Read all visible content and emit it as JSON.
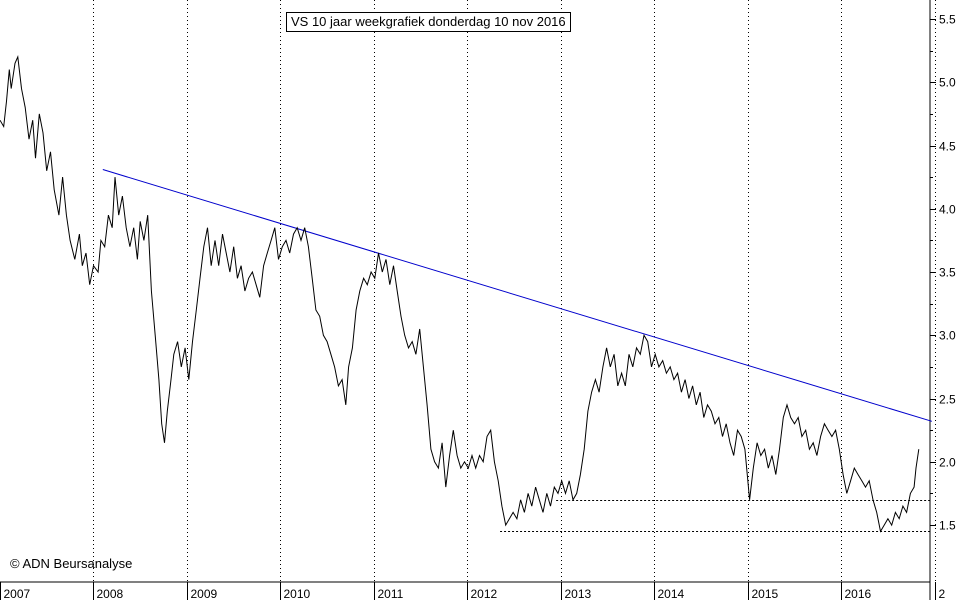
{
  "chart_data": {
    "type": "line",
    "title": "VS 10 jaar weekgrafiek donderdag 10 nov 2016",
    "credit": "© ADN Beursanalyse",
    "x_ticks": [
      "2007",
      "2008",
      "2009",
      "2010",
      "2011",
      "2012",
      "2013",
      "2014",
      "2015",
      "2016",
      "2"
    ],
    "y_ticks": [
      "1.5",
      "2.0",
      "2.5",
      "3.0",
      "3.5",
      "4.0",
      "4.5",
      "5.0",
      "5.5"
    ],
    "ylim": [
      1.05,
      5.65
    ],
    "xlim": [
      2007.0,
      2016.95
    ],
    "grid": "vertical dotted at year boundaries",
    "colors": {
      "price": "#000000",
      "trendline": "#0000cc",
      "support": "#000000"
    },
    "series": [
      {
        "values": [
          [
            2007.0,
            4.7
          ],
          [
            2007.04,
            4.65
          ],
          [
            2007.07,
            4.85
          ],
          [
            2007.1,
            5.1
          ],
          [
            2007.12,
            4.95
          ],
          [
            2007.16,
            5.15
          ],
          [
            2007.19,
            5.2
          ],
          [
            2007.23,
            4.95
          ],
          [
            2007.27,
            4.8
          ],
          [
            2007.31,
            4.55
          ],
          [
            2007.35,
            4.7
          ],
          [
            2007.38,
            4.4
          ],
          [
            2007.42,
            4.75
          ],
          [
            2007.46,
            4.6
          ],
          [
            2007.5,
            4.3
          ],
          [
            2007.54,
            4.45
          ],
          [
            2007.58,
            4.15
          ],
          [
            2007.63,
            3.95
          ],
          [
            2007.67,
            4.25
          ],
          [
            2007.71,
            3.95
          ],
          [
            2007.75,
            3.75
          ],
          [
            2007.8,
            3.6
          ],
          [
            2007.85,
            3.8
          ],
          [
            2007.88,
            3.55
          ],
          [
            2007.92,
            3.65
          ],
          [
            2007.96,
            3.4
          ],
          [
            2008.0,
            3.55
          ],
          [
            2008.05,
            3.5
          ],
          [
            2008.08,
            3.75
          ],
          [
            2008.12,
            3.7
          ],
          [
            2008.16,
            3.95
          ],
          [
            2008.2,
            3.85
          ],
          [
            2008.23,
            4.25
          ],
          [
            2008.27,
            3.95
          ],
          [
            2008.31,
            4.1
          ],
          [
            2008.35,
            3.85
          ],
          [
            2008.39,
            3.7
          ],
          [
            2008.43,
            3.85
          ],
          [
            2008.47,
            3.6
          ],
          [
            2008.5,
            3.9
          ],
          [
            2008.54,
            3.75
          ],
          [
            2008.58,
            3.95
          ],
          [
            2008.62,
            3.35
          ],
          [
            2008.66,
            3.0
          ],
          [
            2008.7,
            2.65
          ],
          [
            2008.73,
            2.3
          ],
          [
            2008.76,
            2.15
          ],
          [
            2008.79,
            2.4
          ],
          [
            2008.83,
            2.65
          ],
          [
            2008.86,
            2.85
          ],
          [
            2008.9,
            2.95
          ],
          [
            2008.94,
            2.75
          ],
          [
            2008.98,
            2.9
          ],
          [
            2009.02,
            2.65
          ],
          [
            2009.06,
            2.95
          ],
          [
            2009.1,
            3.2
          ],
          [
            2009.14,
            3.45
          ],
          [
            2009.18,
            3.7
          ],
          [
            2009.22,
            3.85
          ],
          [
            2009.26,
            3.55
          ],
          [
            2009.3,
            3.75
          ],
          [
            2009.34,
            3.55
          ],
          [
            2009.38,
            3.8
          ],
          [
            2009.42,
            3.65
          ],
          [
            2009.46,
            3.5
          ],
          [
            2009.5,
            3.7
          ],
          [
            2009.54,
            3.45
          ],
          [
            2009.58,
            3.55
          ],
          [
            2009.62,
            3.35
          ],
          [
            2009.66,
            3.45
          ],
          [
            2009.7,
            3.5
          ],
          [
            2009.74,
            3.4
          ],
          [
            2009.78,
            3.3
          ],
          [
            2009.82,
            3.55
          ],
          [
            2009.86,
            3.65
          ],
          [
            2009.9,
            3.75
          ],
          [
            2009.94,
            3.85
          ],
          [
            2009.98,
            3.6
          ],
          [
            2010.02,
            3.7
          ],
          [
            2010.06,
            3.75
          ],
          [
            2010.1,
            3.65
          ],
          [
            2010.14,
            3.8
          ],
          [
            2010.18,
            3.85
          ],
          [
            2010.22,
            3.75
          ],
          [
            2010.26,
            3.85
          ],
          [
            2010.3,
            3.7
          ],
          [
            2010.34,
            3.45
          ],
          [
            2010.38,
            3.2
          ],
          [
            2010.42,
            3.15
          ],
          [
            2010.46,
            3.0
          ],
          [
            2010.5,
            2.95
          ],
          [
            2010.54,
            2.85
          ],
          [
            2010.58,
            2.75
          ],
          [
            2010.62,
            2.6
          ],
          [
            2010.66,
            2.65
          ],
          [
            2010.7,
            2.45
          ],
          [
            2010.73,
            2.75
          ],
          [
            2010.77,
            2.9
          ],
          [
            2010.81,
            3.2
          ],
          [
            2010.85,
            3.35
          ],
          [
            2010.89,
            3.45
          ],
          [
            2010.93,
            3.4
          ],
          [
            2010.97,
            3.5
          ],
          [
            2011.01,
            3.45
          ],
          [
            2011.05,
            3.65
          ],
          [
            2011.09,
            3.5
          ],
          [
            2011.13,
            3.6
          ],
          [
            2011.17,
            3.4
          ],
          [
            2011.21,
            3.55
          ],
          [
            2011.25,
            3.35
          ],
          [
            2011.29,
            3.15
          ],
          [
            2011.33,
            3.0
          ],
          [
            2011.37,
            2.9
          ],
          [
            2011.41,
            2.95
          ],
          [
            2011.45,
            2.85
          ],
          [
            2011.49,
            3.05
          ],
          [
            2011.53,
            2.75
          ],
          [
            2011.57,
            2.45
          ],
          [
            2011.61,
            2.1
          ],
          [
            2011.65,
            2.0
          ],
          [
            2011.69,
            1.95
          ],
          [
            2011.73,
            2.15
          ],
          [
            2011.77,
            1.8
          ],
          [
            2011.81,
            2.05
          ],
          [
            2011.85,
            2.25
          ],
          [
            2011.89,
            2.05
          ],
          [
            2011.93,
            1.95
          ],
          [
            2011.97,
            2.0
          ],
          [
            2012.01,
            1.95
          ],
          [
            2012.05,
            2.05
          ],
          [
            2012.09,
            1.95
          ],
          [
            2012.13,
            2.05
          ],
          [
            2012.17,
            2.0
          ],
          [
            2012.21,
            2.2
          ],
          [
            2012.25,
            2.25
          ],
          [
            2012.29,
            2.0
          ],
          [
            2012.33,
            1.85
          ],
          [
            2012.37,
            1.65
          ],
          [
            2012.41,
            1.5
          ],
          [
            2012.45,
            1.55
          ],
          [
            2012.49,
            1.6
          ],
          [
            2012.53,
            1.55
          ],
          [
            2012.57,
            1.7
          ],
          [
            2012.61,
            1.6
          ],
          [
            2012.65,
            1.75
          ],
          [
            2012.69,
            1.65
          ],
          [
            2012.73,
            1.8
          ],
          [
            2012.77,
            1.7
          ],
          [
            2012.81,
            1.6
          ],
          [
            2012.85,
            1.75
          ],
          [
            2012.89,
            1.65
          ],
          [
            2012.93,
            1.8
          ],
          [
            2012.97,
            1.75
          ],
          [
            2013.01,
            1.85
          ],
          [
            2013.05,
            1.75
          ],
          [
            2013.09,
            1.85
          ],
          [
            2013.13,
            1.7
          ],
          [
            2013.17,
            1.75
          ],
          [
            2013.21,
            1.9
          ],
          [
            2013.25,
            2.1
          ],
          [
            2013.29,
            2.4
          ],
          [
            2013.33,
            2.55
          ],
          [
            2013.37,
            2.65
          ],
          [
            2013.41,
            2.55
          ],
          [
            2013.45,
            2.75
          ],
          [
            2013.49,
            2.9
          ],
          [
            2013.53,
            2.75
          ],
          [
            2013.57,
            2.85
          ],
          [
            2013.61,
            2.6
          ],
          [
            2013.65,
            2.7
          ],
          [
            2013.69,
            2.6
          ],
          [
            2013.73,
            2.85
          ],
          [
            2013.77,
            2.75
          ],
          [
            2013.81,
            2.9
          ],
          [
            2013.85,
            2.85
          ],
          [
            2013.89,
            3.0
          ],
          [
            2013.93,
            2.95
          ],
          [
            2013.97,
            2.75
          ],
          [
            2014.01,
            2.85
          ],
          [
            2014.05,
            2.75
          ],
          [
            2014.09,
            2.8
          ],
          [
            2014.13,
            2.7
          ],
          [
            2014.17,
            2.75
          ],
          [
            2014.21,
            2.65
          ],
          [
            2014.25,
            2.7
          ],
          [
            2014.29,
            2.55
          ],
          [
            2014.33,
            2.65
          ],
          [
            2014.37,
            2.5
          ],
          [
            2014.41,
            2.6
          ],
          [
            2014.45,
            2.45
          ],
          [
            2014.49,
            2.55
          ],
          [
            2014.53,
            2.35
          ],
          [
            2014.57,
            2.45
          ],
          [
            2014.61,
            2.4
          ],
          [
            2014.65,
            2.3
          ],
          [
            2014.69,
            2.35
          ],
          [
            2014.73,
            2.2
          ],
          [
            2014.77,
            2.3
          ],
          [
            2014.81,
            2.15
          ],
          [
            2014.85,
            2.05
          ],
          [
            2014.89,
            2.25
          ],
          [
            2014.93,
            2.2
          ],
          [
            2014.97,
            2.1
          ],
          [
            2015.02,
            1.7
          ],
          [
            2015.06,
            1.95
          ],
          [
            2015.1,
            2.15
          ],
          [
            2015.14,
            2.05
          ],
          [
            2015.18,
            2.1
          ],
          [
            2015.22,
            1.95
          ],
          [
            2015.26,
            2.05
          ],
          [
            2015.3,
            1.9
          ],
          [
            2015.34,
            2.1
          ],
          [
            2015.38,
            2.35
          ],
          [
            2015.42,
            2.45
          ],
          [
            2015.46,
            2.35
          ],
          [
            2015.5,
            2.3
          ],
          [
            2015.54,
            2.35
          ],
          [
            2015.58,
            2.2
          ],
          [
            2015.62,
            2.25
          ],
          [
            2015.66,
            2.1
          ],
          [
            2015.7,
            2.15
          ],
          [
            2015.74,
            2.05
          ],
          [
            2015.78,
            2.2
          ],
          [
            2015.82,
            2.3
          ],
          [
            2015.86,
            2.25
          ],
          [
            2015.9,
            2.2
          ],
          [
            2015.94,
            2.25
          ],
          [
            2015.98,
            2.1
          ],
          [
            2016.02,
            1.9
          ],
          [
            2016.06,
            1.75
          ],
          [
            2016.1,
            1.85
          ],
          [
            2016.14,
            1.95
          ],
          [
            2016.18,
            1.9
          ],
          [
            2016.22,
            1.85
          ],
          [
            2016.26,
            1.8
          ],
          [
            2016.3,
            1.85
          ],
          [
            2016.34,
            1.7
          ],
          [
            2016.38,
            1.6
          ],
          [
            2016.42,
            1.45
          ],
          [
            2016.46,
            1.5
          ],
          [
            2016.5,
            1.55
          ],
          [
            2016.54,
            1.5
          ],
          [
            2016.58,
            1.6
          ],
          [
            2016.62,
            1.55
          ],
          [
            2016.66,
            1.65
          ],
          [
            2016.7,
            1.6
          ],
          [
            2016.74,
            1.75
          ],
          [
            2016.78,
            1.8
          ],
          [
            2016.8,
            1.95
          ],
          [
            2016.83,
            2.1
          ]
        ]
      }
    ],
    "trendline": [
      [
        2008.1,
        4.31
      ],
      [
        2016.97,
        2.32
      ]
    ],
    "support_lines": [
      {
        "y": 1.7,
        "x": [
          2012.95,
          2016.97
        ]
      },
      {
        "y": 1.45,
        "x": [
          2012.35,
          2016.97
        ]
      }
    ]
  }
}
